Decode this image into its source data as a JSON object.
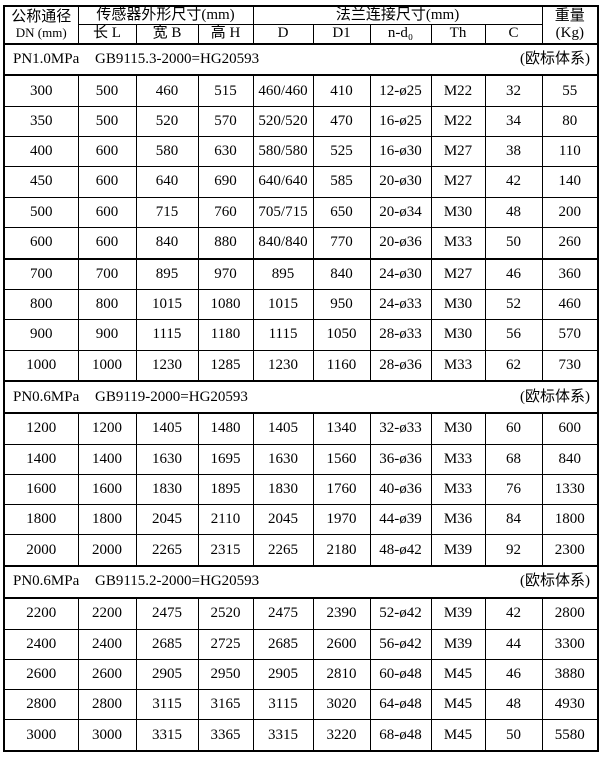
{
  "table": {
    "header": {
      "dn_line1": "公称通径",
      "dn_line2": "DN (mm)",
      "group_sensor": "传感器外形尺寸(mm)",
      "group_flange": "法兰连接尺寸(mm)",
      "weight_line1": "重量",
      "weight_line2": "(Kg)",
      "sub": [
        "长 L",
        "宽 B",
        "高 H",
        "D",
        "D1",
        "n-d₀",
        "Th",
        "C"
      ]
    },
    "sections": [
      {
        "pn": "PN1.0MPa",
        "standard": "GB9115.3-2000=HG20593",
        "note": "(欧标体系)",
        "rows": [
          [
            "300",
            "500",
            "460",
            "515",
            "460/460",
            "410",
            "12-ø25",
            "M22",
            "32",
            "55"
          ],
          [
            "350",
            "500",
            "520",
            "570",
            "520/520",
            "470",
            "16-ø25",
            "M22",
            "34",
            "80"
          ],
          [
            "400",
            "600",
            "580",
            "630",
            "580/580",
            "525",
            "16-ø30",
            "M27",
            "38",
            "110"
          ],
          [
            "450",
            "600",
            "640",
            "690",
            "640/640",
            "585",
            "20-ø30",
            "M27",
            "42",
            "140"
          ],
          [
            "500",
            "600",
            "715",
            "760",
            "705/715",
            "650",
            "20-ø34",
            "M30",
            "48",
            "200"
          ],
          [
            "600",
            "600",
            "840",
            "880",
            "840/840",
            "770",
            "20-ø36",
            "M33",
            "50",
            "260"
          ],
          [
            "700",
            "700",
            "895",
            "970",
            "895",
            "840",
            "24-ø30",
            "M27",
            "46",
            "360"
          ],
          [
            "800",
            "800",
            "1015",
            "1080",
            "1015",
            "950",
            "24-ø33",
            "M30",
            "52",
            "460"
          ],
          [
            "900",
            "900",
            "1115",
            "1180",
            "1115",
            "1050",
            "28-ø33",
            "M30",
            "56",
            "570"
          ],
          [
            "1000",
            "1000",
            "1230",
            "1285",
            "1230",
            "1160",
            "28-ø36",
            "M33",
            "62",
            "730"
          ]
        ]
      },
      {
        "pn": "PN0.6MPa",
        "standard": "GB9119-2000=HG20593",
        "note": "(欧标体系)",
        "rows": [
          [
            "1200",
            "1200",
            "1405",
            "1480",
            "1405",
            "1340",
            "32-ø33",
            "M30",
            "60",
            "600"
          ],
          [
            "1400",
            "1400",
            "1630",
            "1695",
            "1630",
            "1560",
            "36-ø36",
            "M33",
            "68",
            "840"
          ],
          [
            "1600",
            "1600",
            "1830",
            "1895",
            "1830",
            "1760",
            "40-ø36",
            "M33",
            "76",
            "1330"
          ],
          [
            "1800",
            "1800",
            "2045",
            "2110",
            "2045",
            "1970",
            "44-ø39",
            "M36",
            "84",
            "1800"
          ],
          [
            "2000",
            "2000",
            "2265",
            "2315",
            "2265",
            "2180",
            "48-ø42",
            "M39",
            "92",
            "2300"
          ]
        ]
      },
      {
        "pn": "PN0.6MPa",
        "standard": "GB9115.2-2000=HG20593",
        "note": "(欧标体系)",
        "rows": [
          [
            "2200",
            "2200",
            "2475",
            "2520",
            "2475",
            "2390",
            "52-ø42",
            "M39",
            "42",
            "2800"
          ],
          [
            "2400",
            "2400",
            "2685",
            "2725",
            "2685",
            "2600",
            "56-ø42",
            "M39",
            "44",
            "3300"
          ],
          [
            "2600",
            "2600",
            "2905",
            "2950",
            "2905",
            "2810",
            "60-ø48",
            "M45",
            "46",
            "3880"
          ],
          [
            "2800",
            "2800",
            "3115",
            "3165",
            "3115",
            "3020",
            "64-ø48",
            "M45",
            "48",
            "4930"
          ],
          [
            "3000",
            "3000",
            "3315",
            "3365",
            "3315",
            "3220",
            "68-ø48",
            "M45",
            "50",
            "5580"
          ]
        ]
      }
    ]
  }
}
